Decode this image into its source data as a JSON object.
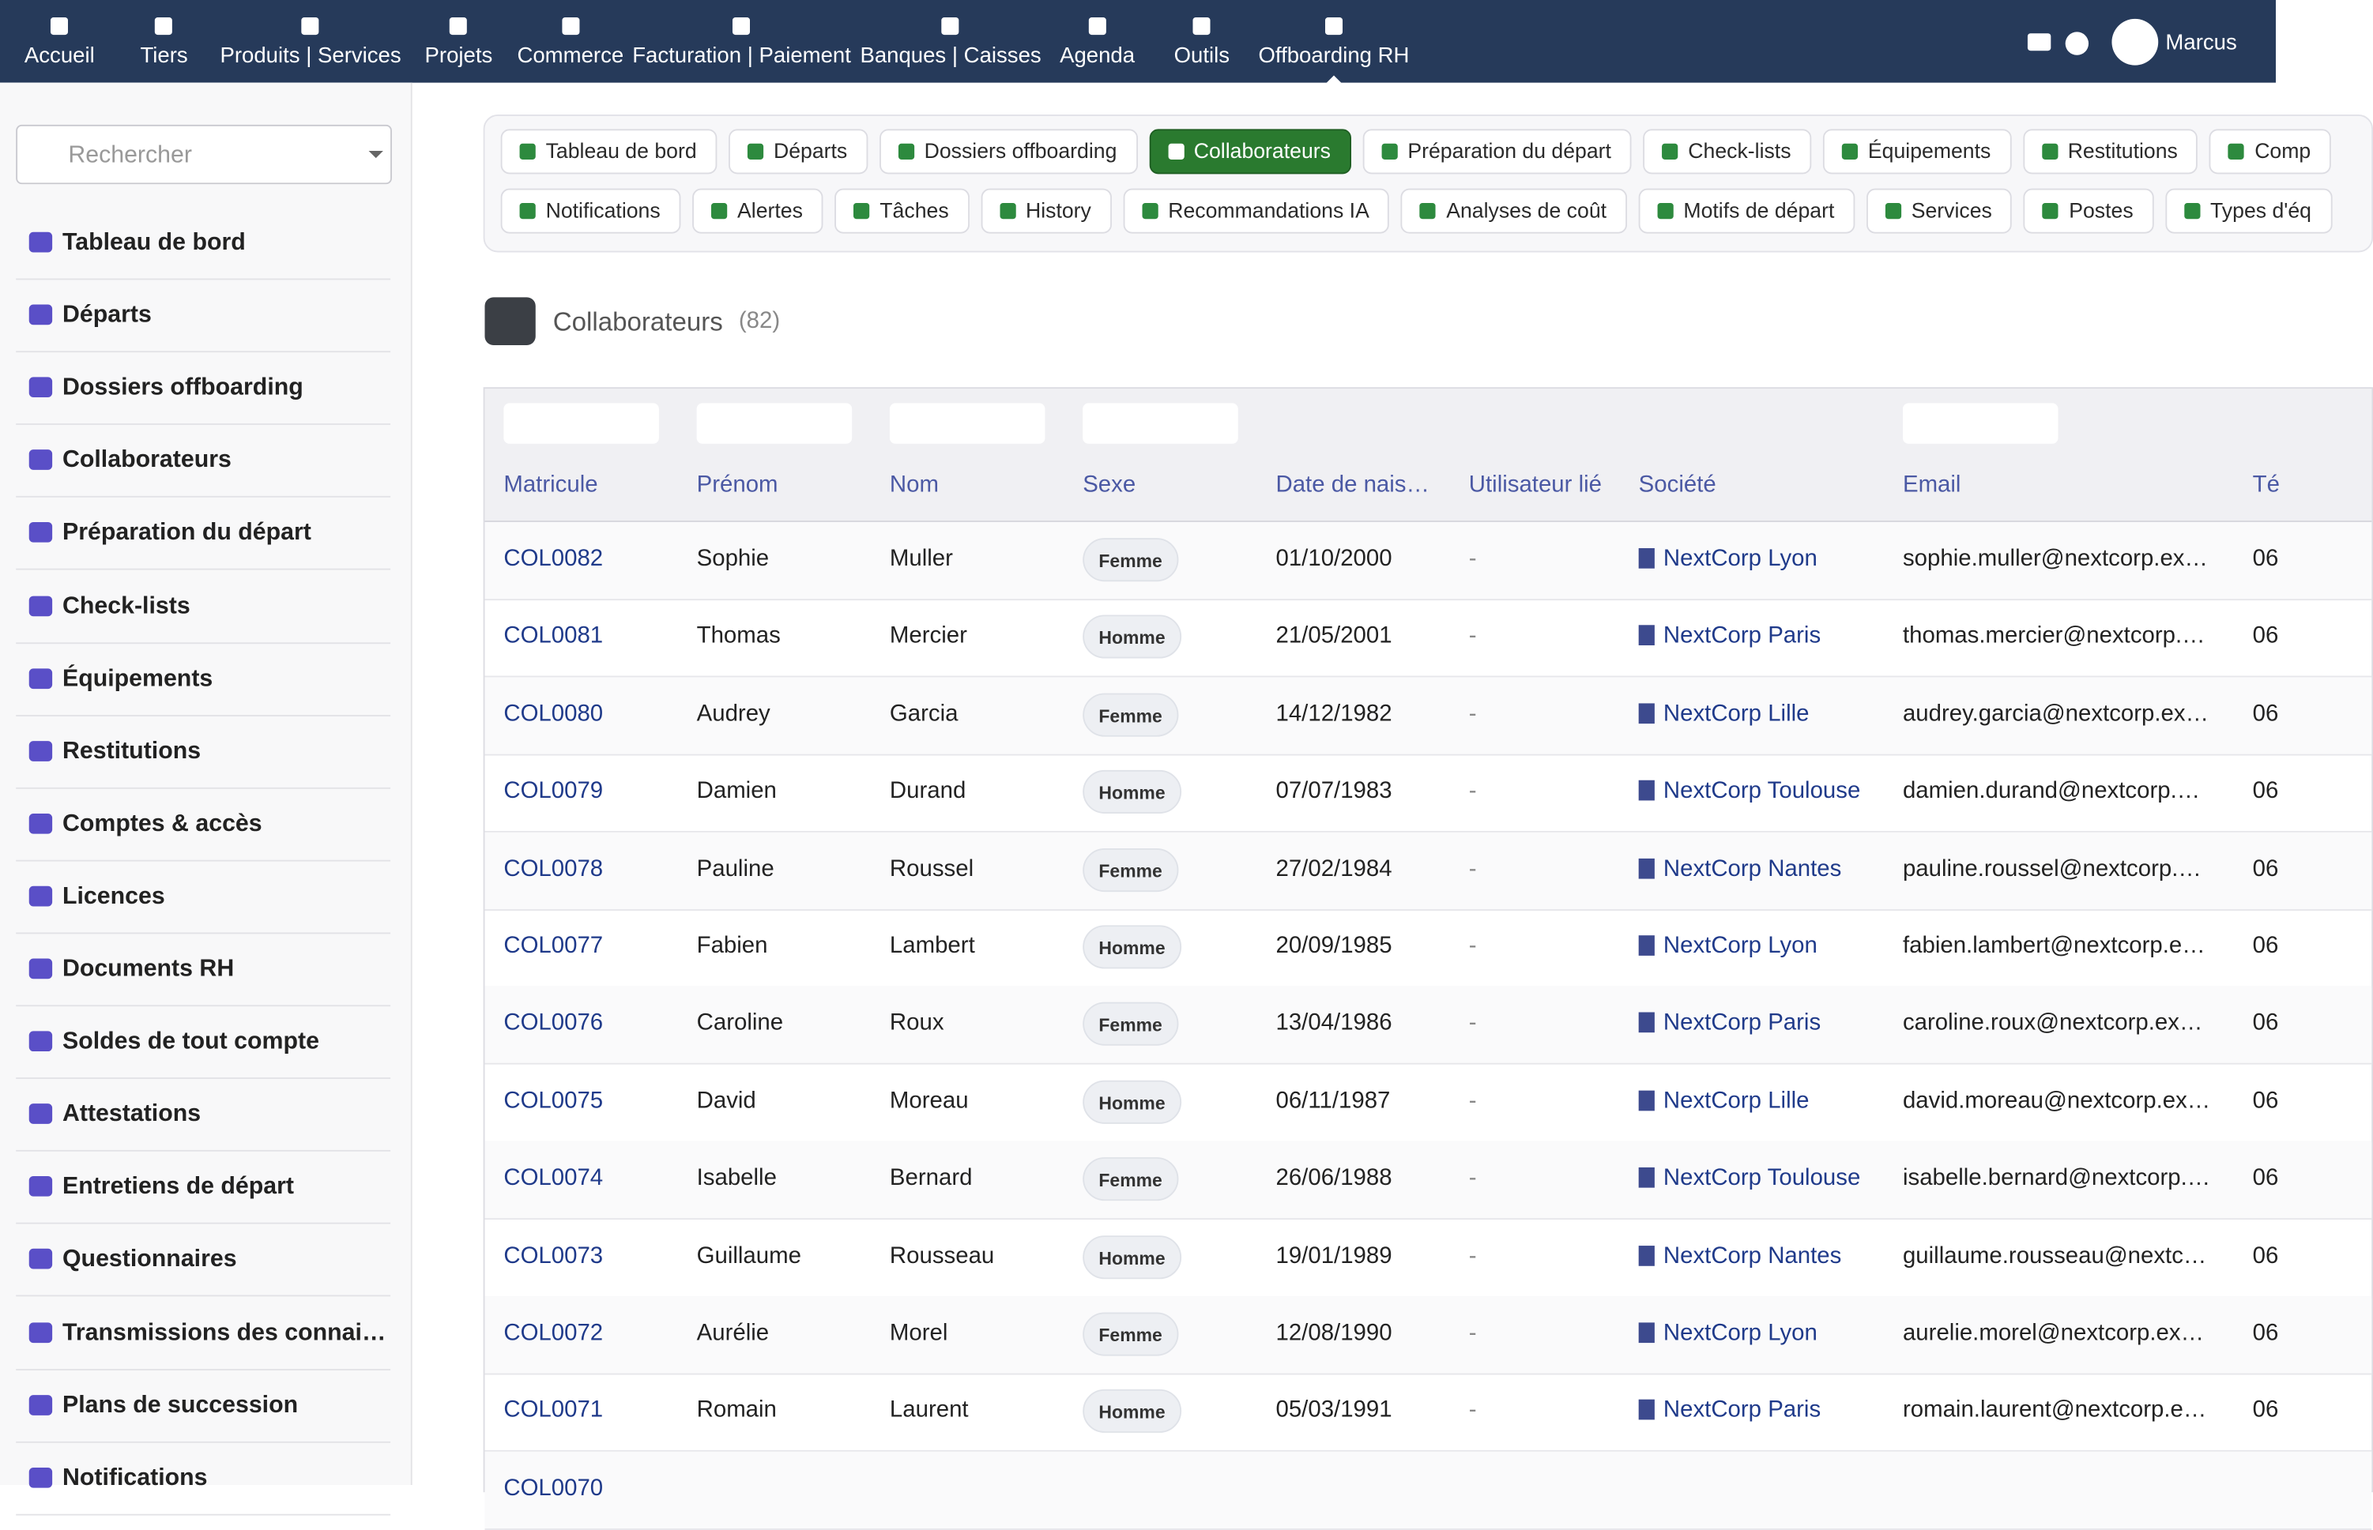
{
  "nav": {
    "items": [
      "Accueil",
      "Tiers",
      "Produits | Services",
      "Projets",
      "Commerce",
      "Facturation | Paiement",
      "Banques | Caisses",
      "Agenda",
      "Outils",
      "Offboarding RH"
    ],
    "user": "Marcus"
  },
  "sidebar": {
    "search_placeholder": "Rechercher",
    "items": [
      "Tableau de bord",
      "Départs",
      "Dossiers offboarding",
      "Collaborateurs",
      "Préparation du départ",
      "Check-lists",
      "Équipements",
      "Restitutions",
      "Comptes & accès",
      "Licences",
      "Documents RH",
      "Soldes de tout compte",
      "Attestations",
      "Entretiens de départ",
      "Questionnaires",
      "Transmissions des connai…",
      "Plans de succession",
      "Notifications"
    ]
  },
  "tabs": {
    "row1": [
      "Tableau de bord",
      "Départs",
      "Dossiers offboarding",
      "Collaborateurs",
      "Préparation du départ",
      "Check-lists",
      "Équipements",
      "Restitutions",
      "Comp"
    ],
    "row2": [
      "Notifications",
      "Alertes",
      "Tâches",
      "History",
      "Recommandations IA",
      "Analyses de coût",
      "Motifs de départ",
      "Services",
      "Postes",
      "Types d'éq"
    ]
  },
  "heading": {
    "title": "Collaborateurs",
    "count": "(82)"
  },
  "table": {
    "columns": [
      "Matricule",
      "Prénom",
      "Nom",
      "Sexe",
      "Date de nais…",
      "Utilisateur lié",
      "Société",
      "Email",
      "Té"
    ],
    "rows": [
      [
        "COL0082",
        "Sophie",
        "Muller",
        "Femme",
        "01/10/2000",
        "-",
        "NextCorp Lyon",
        "sophie.muller@nextcorp.ex…",
        "06"
      ],
      [
        "COL0081",
        "Thomas",
        "Mercier",
        "Homme",
        "21/05/2001",
        "-",
        "NextCorp Paris",
        "thomas.mercier@nextcorp.…",
        "06"
      ],
      [
        "COL0080",
        "Audrey",
        "Garcia",
        "Femme",
        "14/12/1982",
        "-",
        "NextCorp Lille",
        "audrey.garcia@nextcorp.ex…",
        "06"
      ],
      [
        "COL0079",
        "Damien",
        "Durand",
        "Homme",
        "07/07/1983",
        "-",
        "NextCorp Toulouse",
        "damien.durand@nextcorp.…",
        "06"
      ],
      [
        "COL0078",
        "Pauline",
        "Roussel",
        "Femme",
        "27/02/1984",
        "-",
        "NextCorp Nantes",
        "pauline.roussel@nextcorp.…",
        "06"
      ],
      [
        "COL0077",
        "Fabien",
        "Lambert",
        "Homme",
        "20/09/1985",
        "-",
        "NextCorp Lyon",
        "fabien.lambert@nextcorp.e…",
        "06"
      ],
      [
        "COL0076",
        "Caroline",
        "Roux",
        "Femme",
        "13/04/1986",
        "-",
        "NextCorp Paris",
        "caroline.roux@nextcorp.ex…",
        "06"
      ],
      [
        "COL0075",
        "David",
        "Moreau",
        "Homme",
        "06/11/1987",
        "-",
        "NextCorp Lille",
        "david.moreau@nextcorp.ex…",
        "06"
      ],
      [
        "COL0074",
        "Isabelle",
        "Bernard",
        "Femme",
        "26/06/1988",
        "-",
        "NextCorp Toulouse",
        "isabelle.bernard@nextcorp.…",
        "06"
      ],
      [
        "COL0073",
        "Guillaume",
        "Rousseau",
        "Homme",
        "19/01/1989",
        "-",
        "NextCorp Nantes",
        "guillaume.rousseau@nextc…",
        "06"
      ],
      [
        "COL0072",
        "Aurélie",
        "Morel",
        "Femme",
        "12/08/1990",
        "-",
        "NextCorp Lyon",
        "aurelie.morel@nextcorp.ex…",
        "06"
      ],
      [
        "COL0071",
        "Romain",
        "Laurent",
        "Homme",
        "05/03/1991",
        "-",
        "NextCorp Paris",
        "romain.laurent@nextcorp.e…",
        "06"
      ],
      [
        "COL0070"
      ]
    ]
  }
}
